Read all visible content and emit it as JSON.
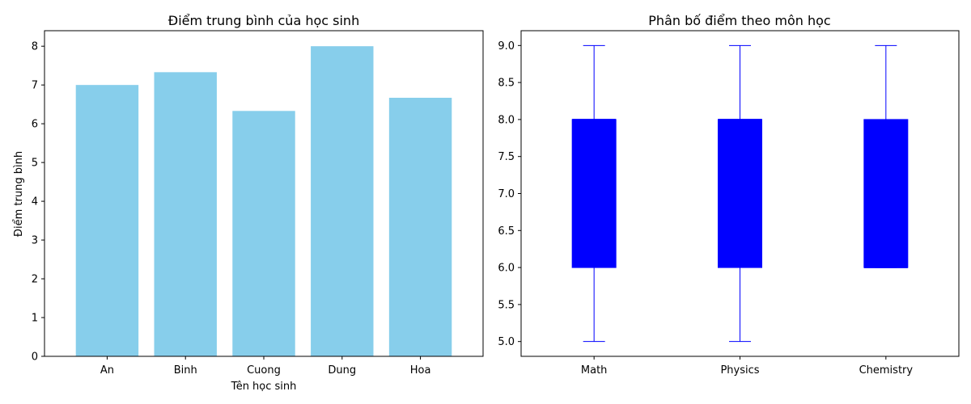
{
  "chart_data": [
    {
      "type": "bar",
      "title": "Điểm trung bình của học sinh",
      "xlabel": "Tên học sinh",
      "ylabel": "Điểm trung bình",
      "categories": [
        "An",
        "Binh",
        "Cuong",
        "Dung",
        "Hoa"
      ],
      "values": [
        7.0,
        7.33,
        6.33,
        8.0,
        6.67
      ],
      "ylim": [
        0,
        8.4
      ],
      "yticks": [
        "0",
        "1",
        "2",
        "3",
        "4",
        "5",
        "6",
        "7",
        "8"
      ],
      "bar_color": "#87ceeb",
      "grid": false
    },
    {
      "type": "box",
      "title": "Phân bố điểm theo môn học",
      "xlabel": "",
      "ylabel": "",
      "categories": [
        "Math",
        "Physics",
        "Chemistry"
      ],
      "boxes": [
        {
          "min": 5.0,
          "q1": 6.0,
          "median": 8.0,
          "q3": 8.0,
          "max": 9.0
        },
        {
          "min": 5.0,
          "q1": 6.0,
          "median": 8.0,
          "q3": 8.0,
          "max": 9.0
        },
        {
          "min": 6.0,
          "q1": 6.0,
          "median": 6.0,
          "q3": 8.0,
          "max": 9.0
        }
      ],
      "ylim": [
        4.8,
        9.2
      ],
      "yticks": [
        "5.0",
        "5.5",
        "6.0",
        "6.5",
        "7.0",
        "7.5",
        "8.0",
        "8.5",
        "9.0"
      ],
      "box_color": "#0000ff",
      "grid": false
    }
  ]
}
